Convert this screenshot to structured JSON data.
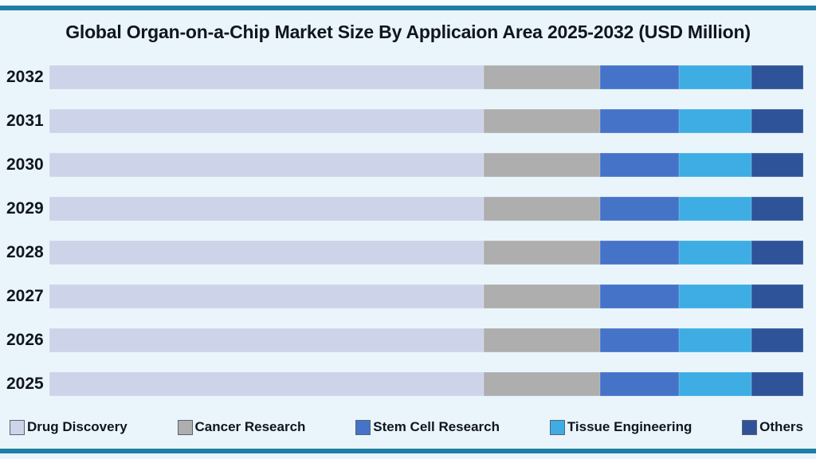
{
  "title": "Global Organ-on-a-Chip Market Size By Applicaion Area 2025-2032 (USD Million)",
  "colors": {
    "background": "#e9f5fb",
    "border_rule": "#1e7ea6",
    "text": "#10151f",
    "swatch_border": "#5a6372"
  },
  "chart_data": {
    "type": "bar",
    "orientation": "horizontal",
    "stacked": true,
    "title": "Global Organ-on-a-Chip Market Size By Applicaion Area 2025-2032 (USD Million)",
    "xlabel": "",
    "ylabel": "",
    "value_axis_visible": false,
    "grid": false,
    "legend_position": "bottom",
    "categories_top_to_bottom": [
      "2032",
      "2031",
      "2030",
      "2029",
      "2028",
      "2027",
      "2026",
      "2025"
    ],
    "series": [
      {
        "name": "Drug Discovery",
        "color": "#cdd3e8",
        "share_pct_of_bar": 57.6
      },
      {
        "name": "Cancer Research",
        "color": "#aeaeae",
        "share_pct_of_bar": 15.4
      },
      {
        "name": "Stem Cell Research",
        "color": "#4573c8",
        "share_pct_of_bar": 10.5
      },
      {
        "name": "Tissue Engineering",
        "color": "#3dade3",
        "share_pct_of_bar": 9.6
      },
      {
        "name": "Others",
        "color": "#2f5399",
        "share_pct_of_bar": 6.9
      }
    ]
  }
}
